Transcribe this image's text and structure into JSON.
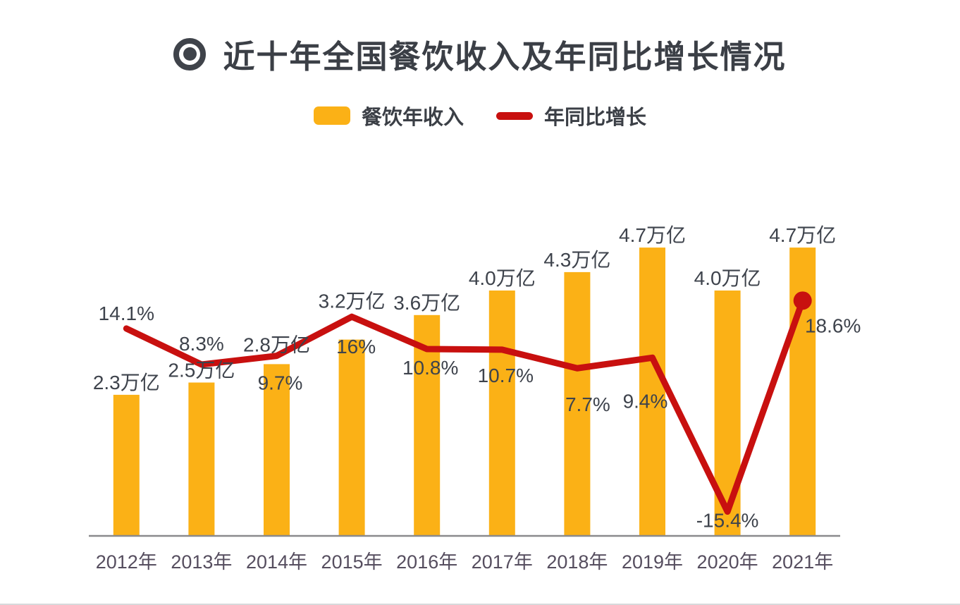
{
  "header": {
    "title": "近十年全国餐饮收入及年同比增长情况",
    "icon": "bullseye-icon"
  },
  "legend": [
    {
      "label": "餐饮年收入",
      "swatch": "bar",
      "color": "#FBB116"
    },
    {
      "label": "年同比增长",
      "swatch": "line",
      "color": "#C8100F"
    }
  ],
  "chart_data": {
    "type": "combo-bar-line",
    "title": "近十年全国餐饮收入及年同比增长情况",
    "categories": [
      "2012年",
      "2013年",
      "2014年",
      "2015年",
      "2016年",
      "2017年",
      "2018年",
      "2019年",
      "2020年",
      "2021年"
    ],
    "series": [
      {
        "name": "餐饮年收入",
        "type": "bar",
        "unit": "万亿",
        "color": "#FBB116",
        "values": [
          2.3,
          2.5,
          2.8,
          3.2,
          3.6,
          4.0,
          4.3,
          4.7,
          4.0,
          4.7
        ],
        "data_labels": [
          "2.3万亿",
          "2.5万亿",
          "2.8万亿",
          "3.2万亿",
          "3.6万亿",
          "4.0万亿",
          "4.3万亿",
          "4.7万亿",
          "4.0万亿",
          "4.7万亿"
        ]
      },
      {
        "name": "年同比增长",
        "type": "line",
        "unit": "%",
        "color": "#C8100F",
        "values": [
          14.1,
          8.3,
          9.7,
          16,
          10.8,
          10.7,
          7.7,
          9.4,
          -15.4,
          18.6
        ],
        "data_labels": [
          "14.1%",
          "8.3%",
          "9.7%",
          "16%",
          "10.8%",
          "10.7%",
          "7.7%",
          "9.4%",
          "-15.4%",
          "18.6%"
        ],
        "end_marker_last_point": true
      }
    ],
    "legend_position": "top",
    "grid": false,
    "y_axes": "hidden",
    "x_axis_line": true,
    "axis_line_color": "#8A8A8D",
    "data_label_color": "#3E434C",
    "category_label_color": "#564E5F",
    "label_layout": {
      "revenue_label_gap": [
        8,
        8,
        18,
        45,
        8,
        8,
        8,
        8,
        8,
        8
      ],
      "growth_label_pos": [
        "above",
        "above",
        "below",
        "below",
        "below",
        "below",
        "below",
        "below",
        "below",
        "below"
      ],
      "growth_label_dx": [
        0,
        0,
        5,
        6,
        5,
        5,
        15,
        -10,
        0,
        43
      ],
      "growth_label_gap": [
        12,
        20,
        22,
        26,
        10,
        20,
        35,
        45,
        -4,
        19
      ]
    }
  }
}
